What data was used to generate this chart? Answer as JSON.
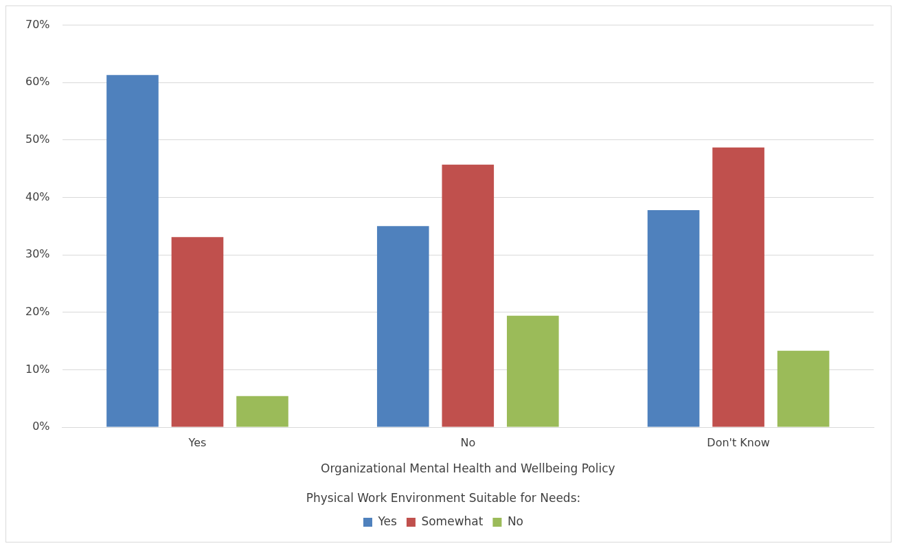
{
  "chart_data": {
    "type": "bar",
    "xlabel": "Organizational Mental Health and Wellbeing Policy",
    "legend_title": "Physical Work Environment Suitable for Needs:",
    "categories": [
      "Yes",
      "No",
      "Don't Know"
    ],
    "series": [
      {
        "name": "Yes",
        "color": "#4f81bd",
        "values": [
          61.3,
          35.0,
          37.8
        ]
      },
      {
        "name": "Somewhat",
        "color": "#c0504d",
        "values": [
          33.1,
          45.7,
          48.7
        ]
      },
      {
        "name": "No",
        "color": "#9bbb59",
        "values": [
          5.4,
          19.4,
          13.3
        ]
      }
    ],
    "ylim": [
      0,
      70
    ],
    "yticks": [
      {
        "value": 0,
        "label": "0%"
      },
      {
        "value": 10,
        "label": "10%"
      },
      {
        "value": 20,
        "label": "20%"
      },
      {
        "value": 30,
        "label": "30%"
      },
      {
        "value": 40,
        "label": "40%"
      },
      {
        "value": 50,
        "label": "50%"
      },
      {
        "value": 60,
        "label": "60%"
      },
      {
        "value": 70,
        "label": "70%"
      }
    ],
    "grid": "y",
    "legend": "bottom"
  }
}
